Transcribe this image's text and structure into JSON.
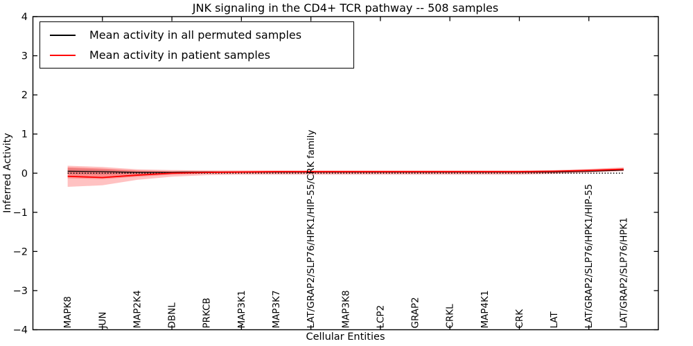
{
  "chart_data": {
    "type": "line",
    "title": "JNK signaling in the CD4+ TCR pathway -- 508 samples",
    "xlabel": "Cellular Entities",
    "ylabel": "Inferred Activity",
    "xlim": [
      0,
      18
    ],
    "ylim": [
      -4,
      4
    ],
    "grid": false,
    "legend_position": "upper left",
    "yticks": [
      {
        "v": -4,
        "label": "−4"
      },
      {
        "v": -3,
        "label": "−3"
      },
      {
        "v": -2,
        "label": "−2"
      },
      {
        "v": -1,
        "label": "−1"
      },
      {
        "v": 0,
        "label": "0"
      },
      {
        "v": 1,
        "label": "1"
      },
      {
        "v": 2,
        "label": "2"
      },
      {
        "v": 3,
        "label": "3"
      },
      {
        "v": 4,
        "label": "4"
      }
    ],
    "xtick_values": [
      2,
      4,
      6,
      8,
      10,
      12,
      14,
      16
    ],
    "categories": [
      "MAPK8",
      "JUN",
      "MAP2K4",
      "DBNL",
      "PRKCB",
      "MAP3K1",
      "MAP3K7",
      "LAT/GRAP2/SLP76/HPK1/HIP-55/CRK family",
      "MAP3K8",
      "LCP2",
      "GRAP2",
      "CRKL",
      "MAP4K1",
      "CRK",
      "LAT",
      "LAT/GRAP2/SLP76/HPK1/HIP-55",
      "LAT/GRAP2/SLP76/HPK1"
    ],
    "x": [
      1,
      2,
      3,
      4,
      5,
      6,
      7,
      8,
      9,
      10,
      11,
      12,
      13,
      14,
      15,
      16,
      17
    ],
    "series": [
      {
        "name": "Mean activity in all permuted samples",
        "color": "#000000",
        "style": "solid",
        "width": 1.3,
        "values": [
          0.05,
          0.04,
          0.02,
          0.02,
          0.03,
          0.03,
          0.03,
          0.03,
          0.03,
          0.03,
          0.03,
          0.03,
          0.03,
          0.03,
          0.03,
          0.05,
          0.08
        ]
      },
      {
        "name": "Mean activity in patient samples",
        "color": "#ff0000",
        "style": "solid",
        "width": 1.8,
        "values": [
          -0.08,
          -0.11,
          -0.05,
          0.0,
          0.02,
          0.03,
          0.04,
          0.04,
          0.04,
          0.04,
          0.04,
          0.04,
          0.04,
          0.04,
          0.05,
          0.07,
          0.1
        ]
      }
    ],
    "reference_line": {
      "y": 0,
      "style": "dotted",
      "color": "#000000"
    },
    "bands": [
      {
        "name": "permuted-std-band",
        "color": "rgba(0,0,0,0.13)",
        "upper": [
          0.13,
          0.1,
          0.06,
          0.04,
          0.04,
          0.04,
          0.04,
          0.04,
          0.04,
          0.04,
          0.04,
          0.04,
          0.04,
          0.04,
          0.04,
          0.06,
          0.09
        ],
        "lower": [
          -0.03,
          -0.04,
          -0.02,
          0.0,
          0.01,
          0.02,
          0.02,
          0.02,
          0.02,
          0.02,
          0.02,
          0.02,
          0.02,
          0.02,
          0.02,
          0.04,
          0.06
        ]
      },
      {
        "name": "patient-outer-band",
        "color": "rgba(255,0,0,0.24)",
        "upper": [
          0.19,
          0.16,
          0.1,
          0.08,
          0.07,
          0.07,
          0.07,
          0.07,
          0.07,
          0.07,
          0.07,
          0.07,
          0.07,
          0.07,
          0.08,
          0.11,
          0.15
        ],
        "lower": [
          -0.35,
          -0.31,
          -0.17,
          -0.09,
          -0.05,
          -0.04,
          -0.04,
          -0.04,
          -0.04,
          -0.04,
          -0.04,
          -0.04,
          -0.04,
          -0.04,
          -0.02,
          0.01,
          0.05
        ]
      },
      {
        "name": "patient-inner-band",
        "color": "rgba(255,0,0,0.26)",
        "upper": [
          0.15,
          0.12,
          0.07,
          0.05,
          0.05,
          0.05,
          0.05,
          0.05,
          0.05,
          0.05,
          0.05,
          0.05,
          0.05,
          0.05,
          0.06,
          0.09,
          0.13
        ],
        "lower": [
          -0.13,
          -0.15,
          -0.09,
          -0.04,
          -0.01,
          0.0,
          0.0,
          0.0,
          0.0,
          0.0,
          0.0,
          0.0,
          0.0,
          0.0,
          0.01,
          0.04,
          0.07
        ]
      }
    ]
  }
}
